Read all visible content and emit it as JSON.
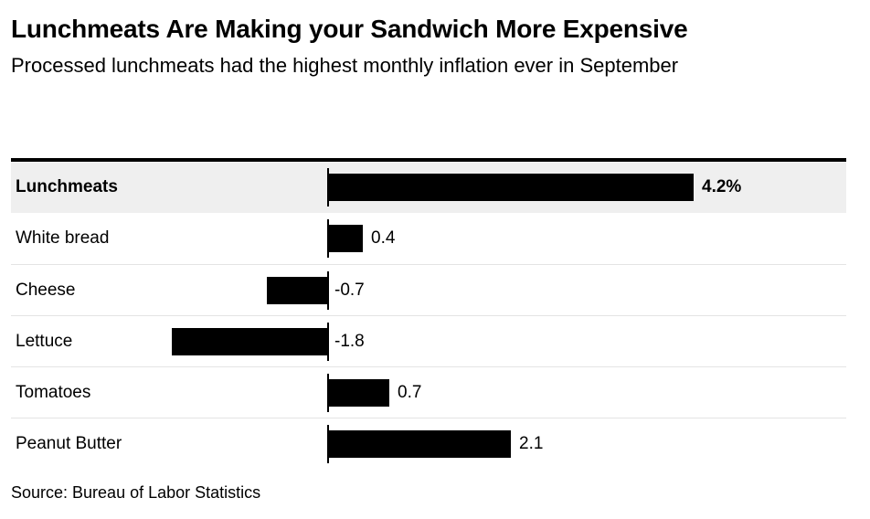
{
  "header": {
    "title": "Lunchmeats Are Making your Sandwich More Expensive",
    "subtitle": "Processed lunchmeats had the highest monthly inflation ever in September"
  },
  "source_note": "Source: Bureau of Labor Statistics",
  "colors": {
    "bar": "#000000",
    "highlight_row_background": "#efefef",
    "top_rule": "#000000",
    "row_separator": "#e4e4e4",
    "text": "#000000"
  },
  "chart_data": {
    "type": "bar",
    "orientation": "horizontal",
    "title": "Lunchmeats Are Making your Sandwich More Expensive",
    "subtitle": "Processed lunchmeats had the highest monthly inflation ever in September",
    "categories": [
      "Lunchmeats",
      "White bread",
      "Cheese",
      "Lettuce",
      "Tomatoes",
      "Peanut Butter"
    ],
    "values": [
      4.2,
      0.4,
      -0.7,
      -1.8,
      0.7,
      2.1
    ],
    "value_labels": [
      "4.2%",
      "0.4",
      "-0.7",
      "-1.8",
      "0.7",
      "2.1"
    ],
    "unit": "percent",
    "highlighted_category": "Lunchmeats",
    "baseline": 0,
    "xlim": [
      -2.0,
      4.6
    ],
    "grid": false,
    "legend": false,
    "source": "Source: Bureau of Labor Statistics"
  }
}
